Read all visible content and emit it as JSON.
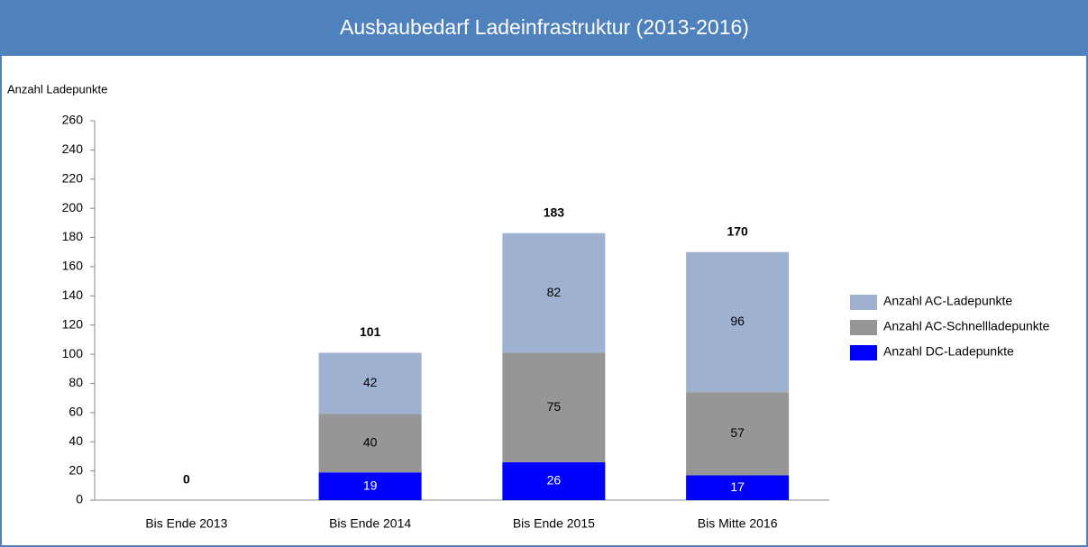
{
  "chart_data": {
    "type": "stacked_bar",
    "title": "Ausbaubedarf Ladeinfrastruktur (2013-2016)",
    "y_label": "Anzahl Ladepunkte",
    "categories": [
      "Bis Ende 2013",
      "Bis Ende 2014",
      "Bis Ende 2015",
      "Bis Mitte 2016"
    ],
    "series": [
      {
        "name": "Anzahl DC-Ladepunkte",
        "color": "#0000ff",
        "values": [
          0,
          19,
          26,
          17
        ]
      },
      {
        "name": "Anzahl AC-Schnellladepunkte",
        "color": "#969696",
        "values": [
          0,
          40,
          75,
          57
        ]
      },
      {
        "name": "Anzahl AC-Ladepunkte",
        "color": "#9fb1d0",
        "values": [
          0,
          42,
          82,
          96
        ]
      }
    ],
    "totals": [
      0,
      101,
      183,
      170
    ],
    "ylim": [
      0,
      260
    ],
    "yticks": [
      0,
      20,
      40,
      60,
      80,
      100,
      120,
      140,
      160,
      180,
      200,
      220,
      240,
      260
    ],
    "grid": false,
    "legend": "right"
  }
}
